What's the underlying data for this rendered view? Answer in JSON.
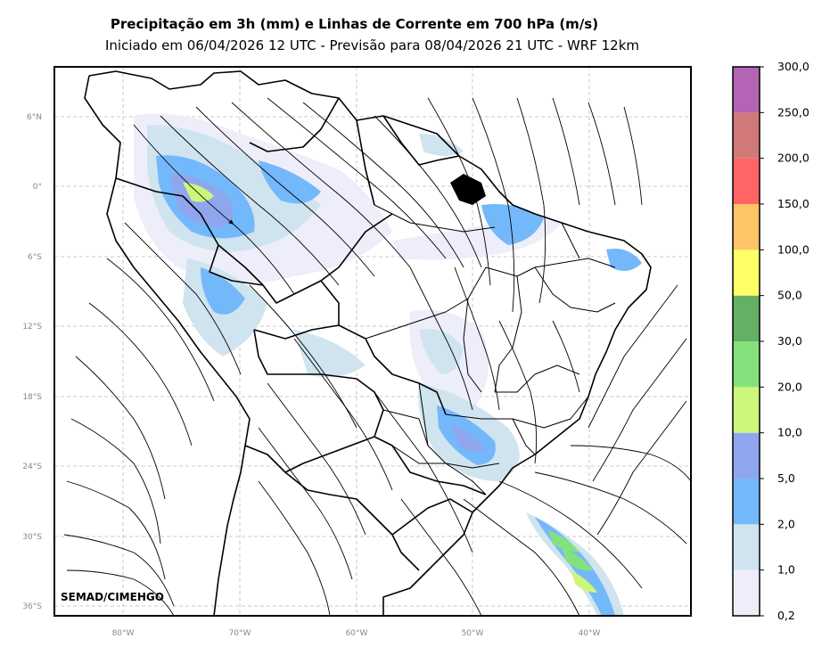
{
  "title": "Precipitação em 3h (mm) e Linhas de Corrente em 700 hPa (m/s)",
  "subtitle": "Iniciado em 06/04/2026 12 UTC - Previsão para 08/04/2026 21 UTC - WRF 12km",
  "credit": "SEMAD/CIMEHGO",
  "lat_ticks": [
    "6°N",
    "0°",
    "6°S",
    "12°S",
    "18°S",
    "24°S",
    "30°S",
    "36°S"
  ],
  "lon_ticks": [
    "80°W",
    "70°W",
    "60°W",
    "50°W",
    "40°W"
  ],
  "colorbar": {
    "labels": [
      "0,2",
      "1,0",
      "2,0",
      "5,0",
      "10,0",
      "20,0",
      "30,0",
      "50,0",
      "100,0",
      "150,0",
      "200,0",
      "250,0",
      "300,0"
    ],
    "colors": [
      "#eeeefa",
      "#cfe4ef",
      "#74b8fc",
      "#8fa6ef",
      "#cdf77b",
      "#85e17c",
      "#65b064",
      "#ffff66",
      "#ffc466",
      "#ff6565",
      "#d17878",
      "#b464b4"
    ]
  }
}
